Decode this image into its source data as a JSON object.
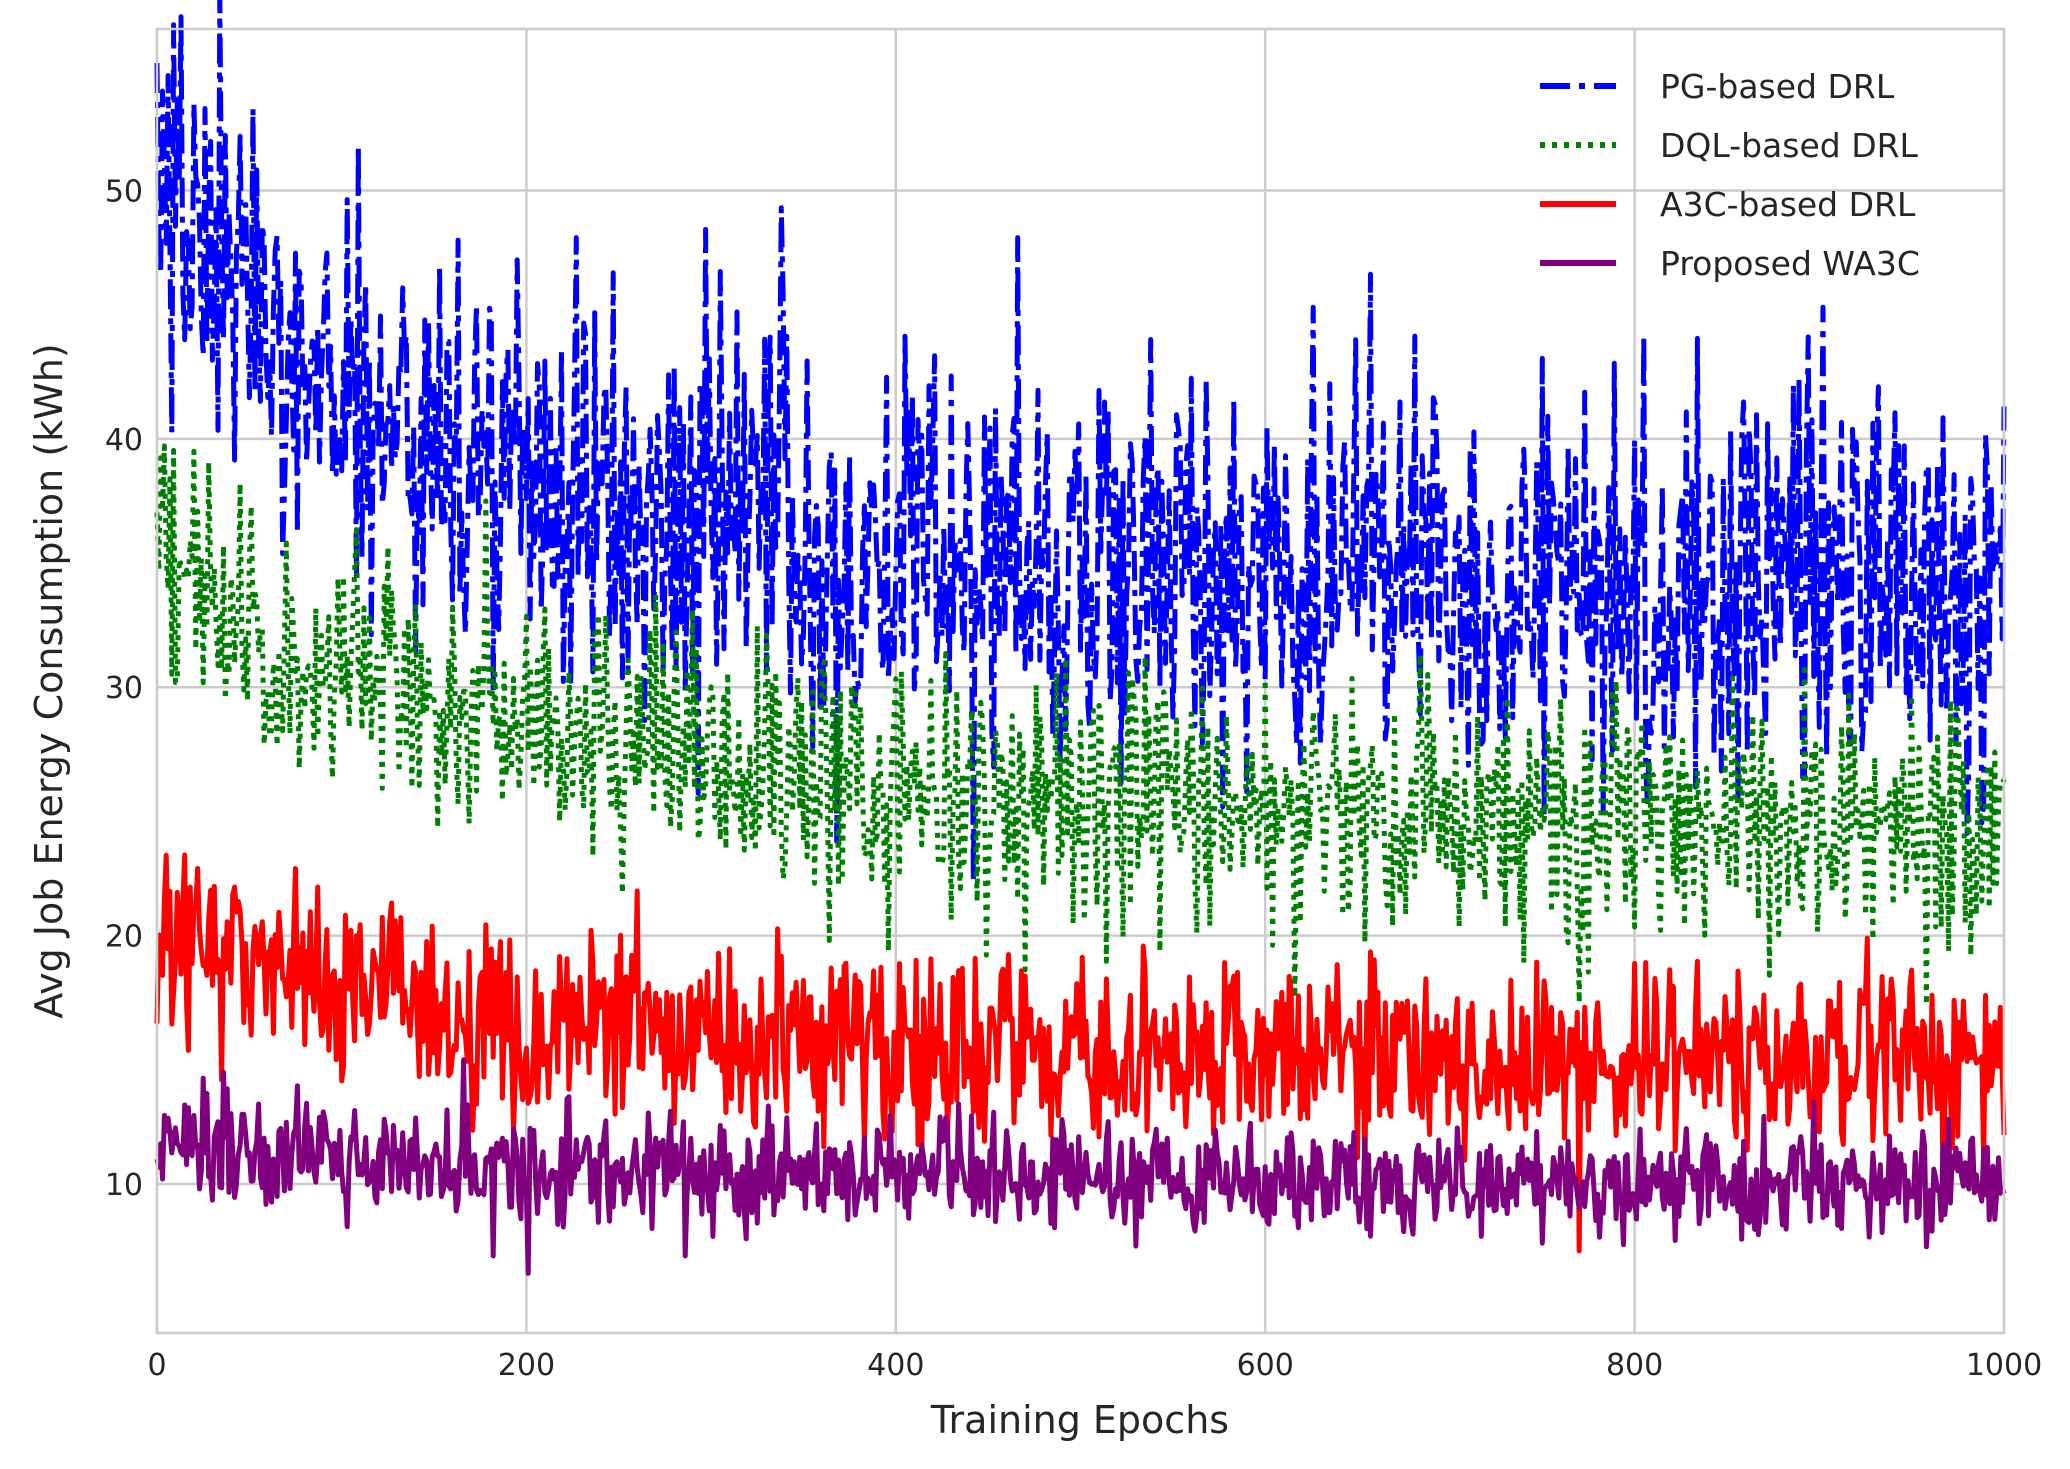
{
  "chart_data": {
    "type": "line",
    "title": "",
    "xlabel": "Training Epochs",
    "ylabel": "Avg Job Energy Consumption (kWh)",
    "xlim": [
      0,
      1000
    ],
    "ylim": [
      4,
      56.5
    ],
    "xticks": [
      0,
      200,
      400,
      600,
      800,
      1000
    ],
    "yticks": [
      10,
      20,
      30,
      40,
      50
    ],
    "grid": true,
    "legend_position": "top-right",
    "series": [
      {
        "name": "PG-based DRL",
        "color": "#0000ff",
        "style": "dashdot",
        "trend_x": [
          0,
          10,
          25,
          50,
          75,
          100,
          150,
          200,
          250,
          300,
          350,
          400,
          450,
          500,
          550,
          600,
          650,
          700,
          750,
          800,
          850,
          900,
          950,
          1000
        ],
        "trend_y": [
          51,
          49,
          47,
          45.5,
          44,
          42,
          39.5,
          38,
          37,
          36.5,
          36,
          35.5,
          35,
          35,
          35,
          35,
          35,
          35,
          34.5,
          34.5,
          34,
          34,
          34,
          34
        ],
        "noise": 4.2,
        "spikes": [
          [
            3,
            54
          ],
          [
            20,
            53.5
          ],
          [
            26,
            53.3
          ],
          [
            52,
            53.3
          ],
          [
            338,
            49.3
          ],
          [
            227,
            48.1
          ],
          [
            466,
            48.1
          ],
          [
            163,
            48
          ],
          [
            626,
            45.3
          ],
          [
            902,
            45.3
          ],
          [
            442,
            22.2
          ],
          [
            368,
            23.8
          ]
        ]
      },
      {
        "name": "DQL-based DRL",
        "color": "#008000",
        "style": "dotted",
        "trend_x": [
          0,
          10,
          25,
          50,
          75,
          100,
          150,
          200,
          250,
          300,
          350,
          400,
          450,
          500,
          550,
          600,
          650,
          700,
          750,
          800,
          850,
          900,
          950,
          1000
        ],
        "trend_y": [
          36,
          35,
          34,
          32,
          31,
          30.5,
          29,
          28.5,
          28,
          27,
          26.5,
          26,
          25.5,
          25.5,
          25.5,
          25,
          25,
          25,
          24.5,
          24.5,
          24.5,
          24.5,
          24.5,
          24.5
        ],
        "noise": 2.6,
        "spikes": [
          [
            20,
            39.5
          ],
          [
            7,
            38.4
          ],
          [
            45,
            38.2
          ],
          [
            178,
            37.5
          ],
          [
            563,
            20.1
          ],
          [
            740,
            18.9
          ],
          [
            770,
            17.3
          ],
          [
            873,
            18.4
          ],
          [
            958,
            17.2
          ]
        ]
      },
      {
        "name": "A3C-based DRL",
        "color": "#ff0000",
        "style": "solid",
        "trend_x": [
          0,
          25,
          50,
          100,
          150,
          200,
          300,
          400,
          500,
          600,
          700,
          800,
          900,
          1000
        ],
        "trend_y": [
          19.5,
          19.2,
          18.8,
          18.2,
          17,
          16.3,
          15.8,
          15.6,
          15.4,
          15.2,
          15.1,
          15,
          15,
          14.9
        ],
        "noise": 1.9,
        "spikes": [
          [
            22,
            22.7
          ],
          [
            75,
            22.7
          ],
          [
            129,
            20.6
          ],
          [
            260,
            21.8
          ],
          [
            770,
            7.3
          ],
          [
            481,
            13.8
          ]
        ]
      },
      {
        "name": "Proposed WA3C",
        "color": "#800080",
        "style": "solid",
        "trend_x": [
          0,
          50,
          100,
          200,
          300,
          400,
          500,
          600,
          700,
          800,
          900,
          1000
        ],
        "trend_y": [
          12.2,
          11.2,
          11,
          10.8,
          10.6,
          10.5,
          10.3,
          10.3,
          10.2,
          10.1,
          10.1,
          10
        ],
        "noise": 1.1,
        "spikes": [
          [
            36,
            14.5
          ],
          [
            166,
            15
          ],
          [
            201,
            6.4
          ],
          [
            182,
            7.1
          ],
          [
            286,
            7.1
          ]
        ]
      }
    ]
  }
}
